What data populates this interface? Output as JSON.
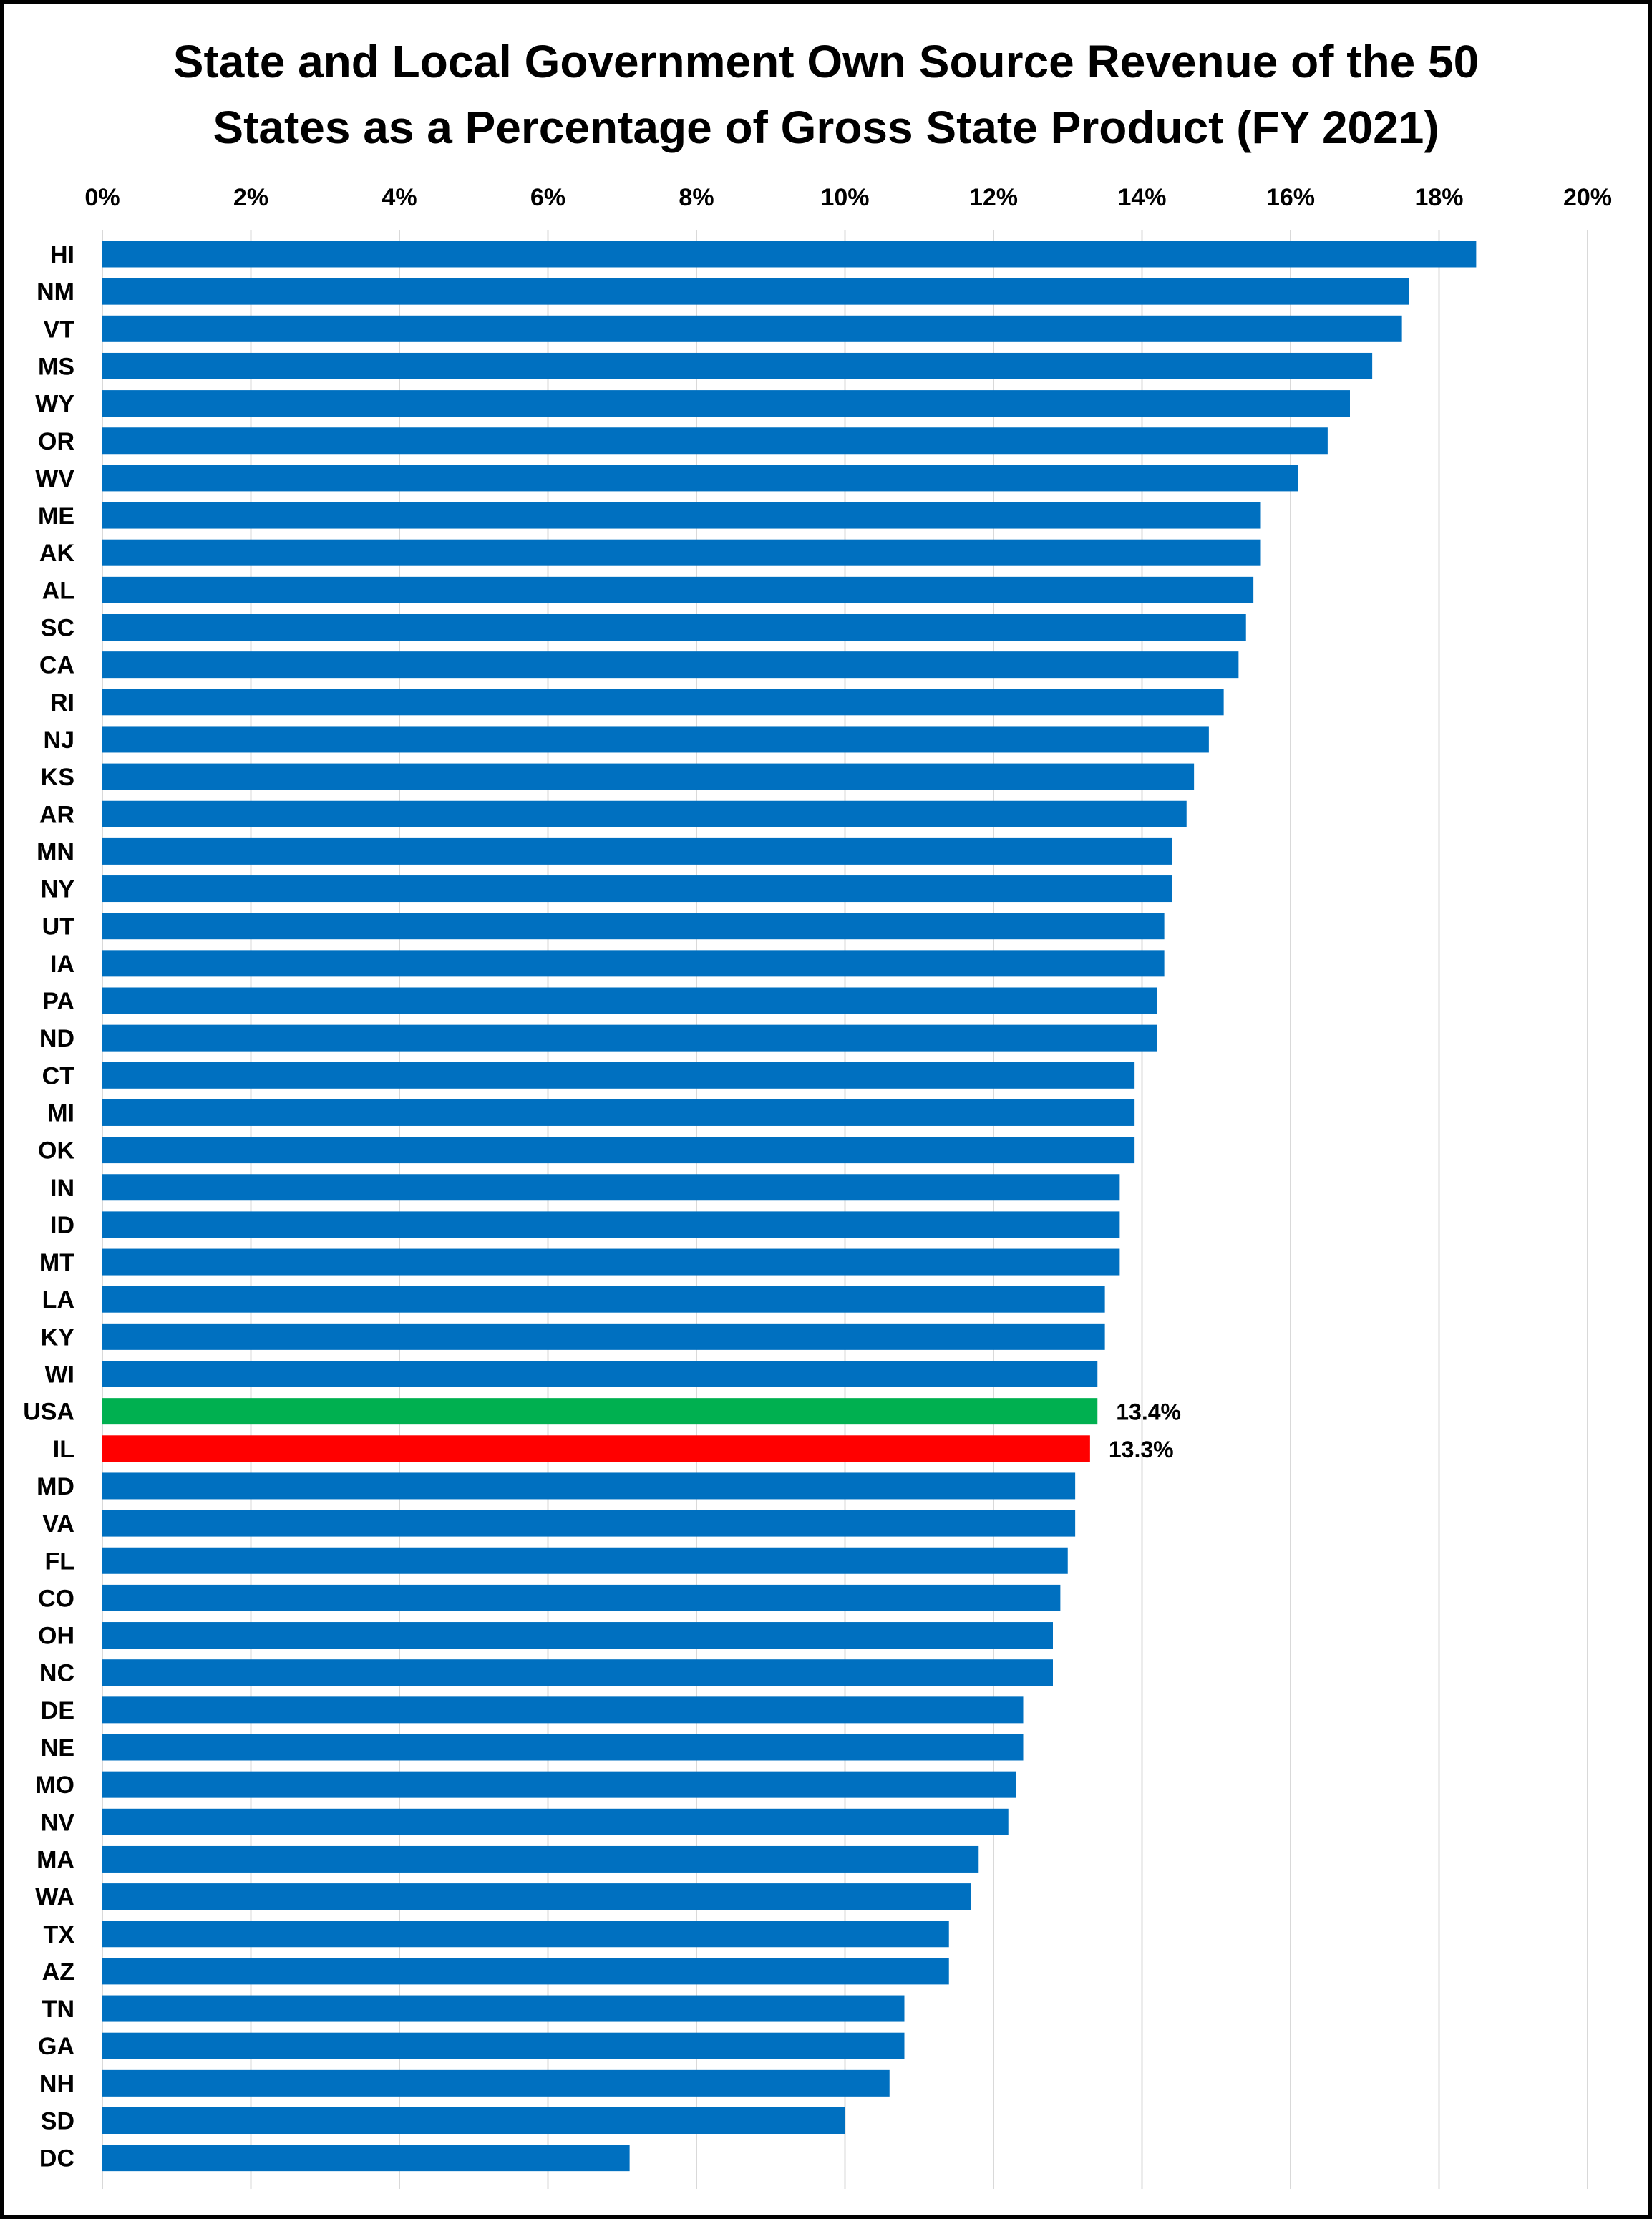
{
  "chart_data": {
    "type": "bar",
    "orientation": "horizontal",
    "title_lines": [
      "State and Local Government Own Source Revenue of the 50",
      "States as a Percentage of Gross State Product (FY 2021)"
    ],
    "x_ticks": [
      "0%",
      "2%",
      "4%",
      "6%",
      "8%",
      "10%",
      "12%",
      "14%",
      "16%",
      "18%",
      "20%"
    ],
    "xlim": [
      0,
      20
    ],
    "grid": true,
    "axis_position": "top",
    "categories": [
      "HI",
      "NM",
      "VT",
      "MS",
      "WY",
      "OR",
      "WV",
      "ME",
      "AK",
      "AL",
      "SC",
      "CA",
      "RI",
      "NJ",
      "KS",
      "AR",
      "MN",
      "NY",
      "UT",
      "IA",
      "PA",
      "ND",
      "CT",
      "MI",
      "OK",
      "IN",
      "ID",
      "MT",
      "LA",
      "KY",
      "WI",
      "USA",
      "IL",
      "MD",
      "VA",
      "FL",
      "CO",
      "OH",
      "NC",
      "DE",
      "NE",
      "MO",
      "NV",
      "MA",
      "WA",
      "TX",
      "AZ",
      "TN",
      "GA",
      "NH",
      "SD",
      "DC"
    ],
    "values": [
      18.5,
      17.6,
      17.5,
      17.1,
      16.8,
      16.5,
      16.1,
      15.6,
      15.6,
      15.5,
      15.4,
      15.3,
      15.1,
      14.9,
      14.7,
      14.6,
      14.4,
      14.4,
      14.3,
      14.3,
      14.2,
      14.2,
      13.9,
      13.9,
      13.9,
      13.7,
      13.7,
      13.7,
      13.5,
      13.5,
      13.4,
      13.4,
      13.3,
      13.1,
      13.1,
      13.0,
      12.9,
      12.8,
      12.8,
      12.4,
      12.4,
      12.3,
      12.2,
      11.8,
      11.7,
      11.4,
      11.4,
      10.8,
      10.8,
      10.6,
      10.0,
      7.1
    ],
    "colors": {
      "default": "#0070C0",
      "USA": "#00B050",
      "IL": "#FF0000",
      "grid": "#D9D9D9",
      "border": "#000000"
    },
    "data_labels": [
      {
        "category": "USA",
        "text": "13.4%"
      },
      {
        "category": "IL",
        "text": "13.3%"
      }
    ]
  }
}
